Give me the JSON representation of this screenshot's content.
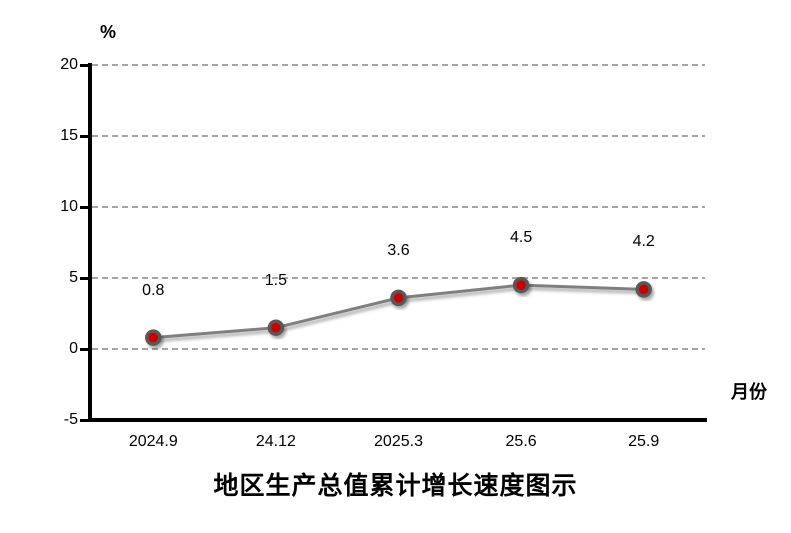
{
  "chart_data": {
    "type": "line",
    "title": "地区生产总值累计增长速度图示",
    "unit_label": "%",
    "x_axis_label": "月份",
    "categories": [
      "2024.9",
      "24.12",
      "2025.3",
      "25.6",
      "25.9"
    ],
    "series": [
      {
        "name": "地区生产总值累计增长速度",
        "values": [
          0.8,
          1.5,
          3.6,
          4.5,
          4.2
        ]
      }
    ],
    "data_labels": [
      "0.8",
      "1.5",
      "3.6",
      "4.5",
      "4.2"
    ],
    "y_ticks": [
      20,
      15,
      10,
      5,
      0,
      -5
    ],
    "ylim": [
      -5,
      20
    ],
    "grid": "horizontal-dashed",
    "legend_position": "none",
    "colors": {
      "line": "#7f7f7f",
      "marker_fill": "#cc0000",
      "marker_ring": "#595959",
      "gridline": "#a6a6a6",
      "axis": "#000000",
      "background": "#ffffff",
      "text": "#000000"
    }
  }
}
